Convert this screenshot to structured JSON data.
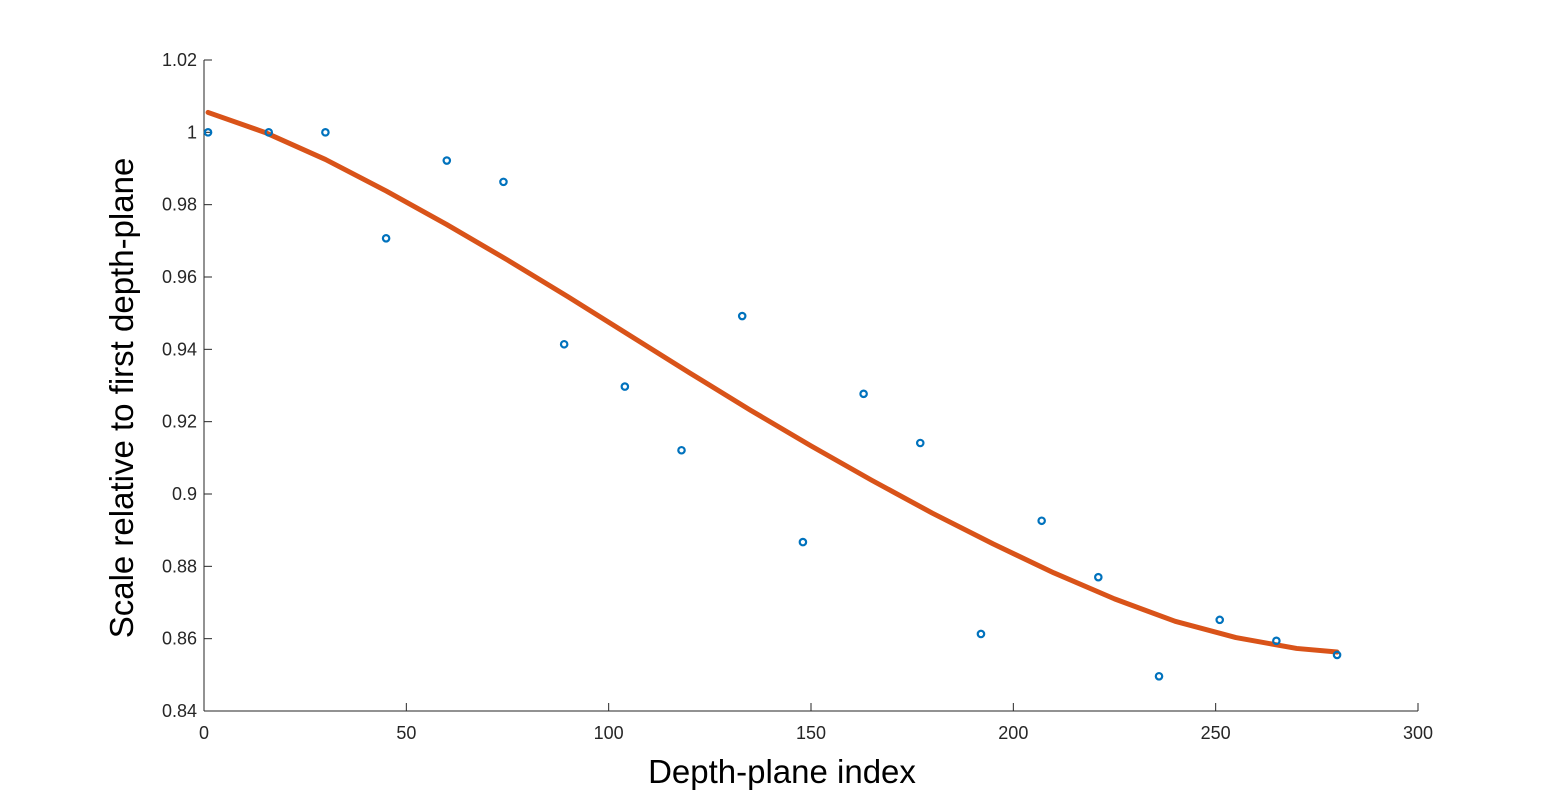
{
  "chart_data": {
    "type": "scatter",
    "title": "",
    "xlabel": "Depth-plane index",
    "ylabel": "Scale relative to first depth-plane",
    "xlim": [
      0,
      300
    ],
    "ylim": [
      0.84,
      1.02
    ],
    "xticks": [
      0,
      50,
      100,
      150,
      200,
      250,
      300
    ],
    "xtick_labels": [
      "0",
      "50",
      "100",
      "150",
      "200",
      "250",
      "300"
    ],
    "yticks": [
      0.84,
      0.86,
      0.88,
      0.9,
      0.92,
      0.94,
      0.96,
      0.98,
      1.0,
      1.02
    ],
    "ytick_labels": [
      "0.84",
      "0.86",
      "0.88",
      "0.9",
      "0.92",
      "0.94",
      "0.96",
      "0.98",
      "1",
      "1.02"
    ],
    "grid": false,
    "series": [
      {
        "type": "scatter",
        "color": "#0072BD",
        "marker": "open-circle",
        "x": [
          1,
          16,
          30,
          45,
          60,
          74,
          89,
          104,
          118,
          133,
          148,
          163,
          177,
          192,
          207,
          221,
          236,
          251,
          265,
          280
        ],
        "y": [
          1.0,
          1.0,
          1.0,
          0.9707,
          0.9922,
          0.9863,
          0.9414,
          0.9297,
          0.9121,
          0.9492,
          0.8867,
          0.9277,
          0.9141,
          0.8613,
          0.8926,
          0.877,
          0.8496,
          0.8652,
          0.8594,
          0.8555
        ]
      },
      {
        "type": "line",
        "color": "#D95319",
        "x": [
          1,
          15,
          30,
          45,
          60,
          75,
          90,
          105,
          120,
          135,
          150,
          165,
          180,
          195,
          210,
          225,
          240,
          255,
          270,
          280
        ],
        "y": [
          1.0055,
          1.0,
          0.9925,
          0.9838,
          0.9745,
          0.9647,
          0.9545,
          0.944,
          0.9335,
          0.9232,
          0.9133,
          0.9038,
          0.8947,
          0.8862,
          0.8782,
          0.871,
          0.8648,
          0.8603,
          0.8573,
          0.8563
        ]
      }
    ]
  }
}
